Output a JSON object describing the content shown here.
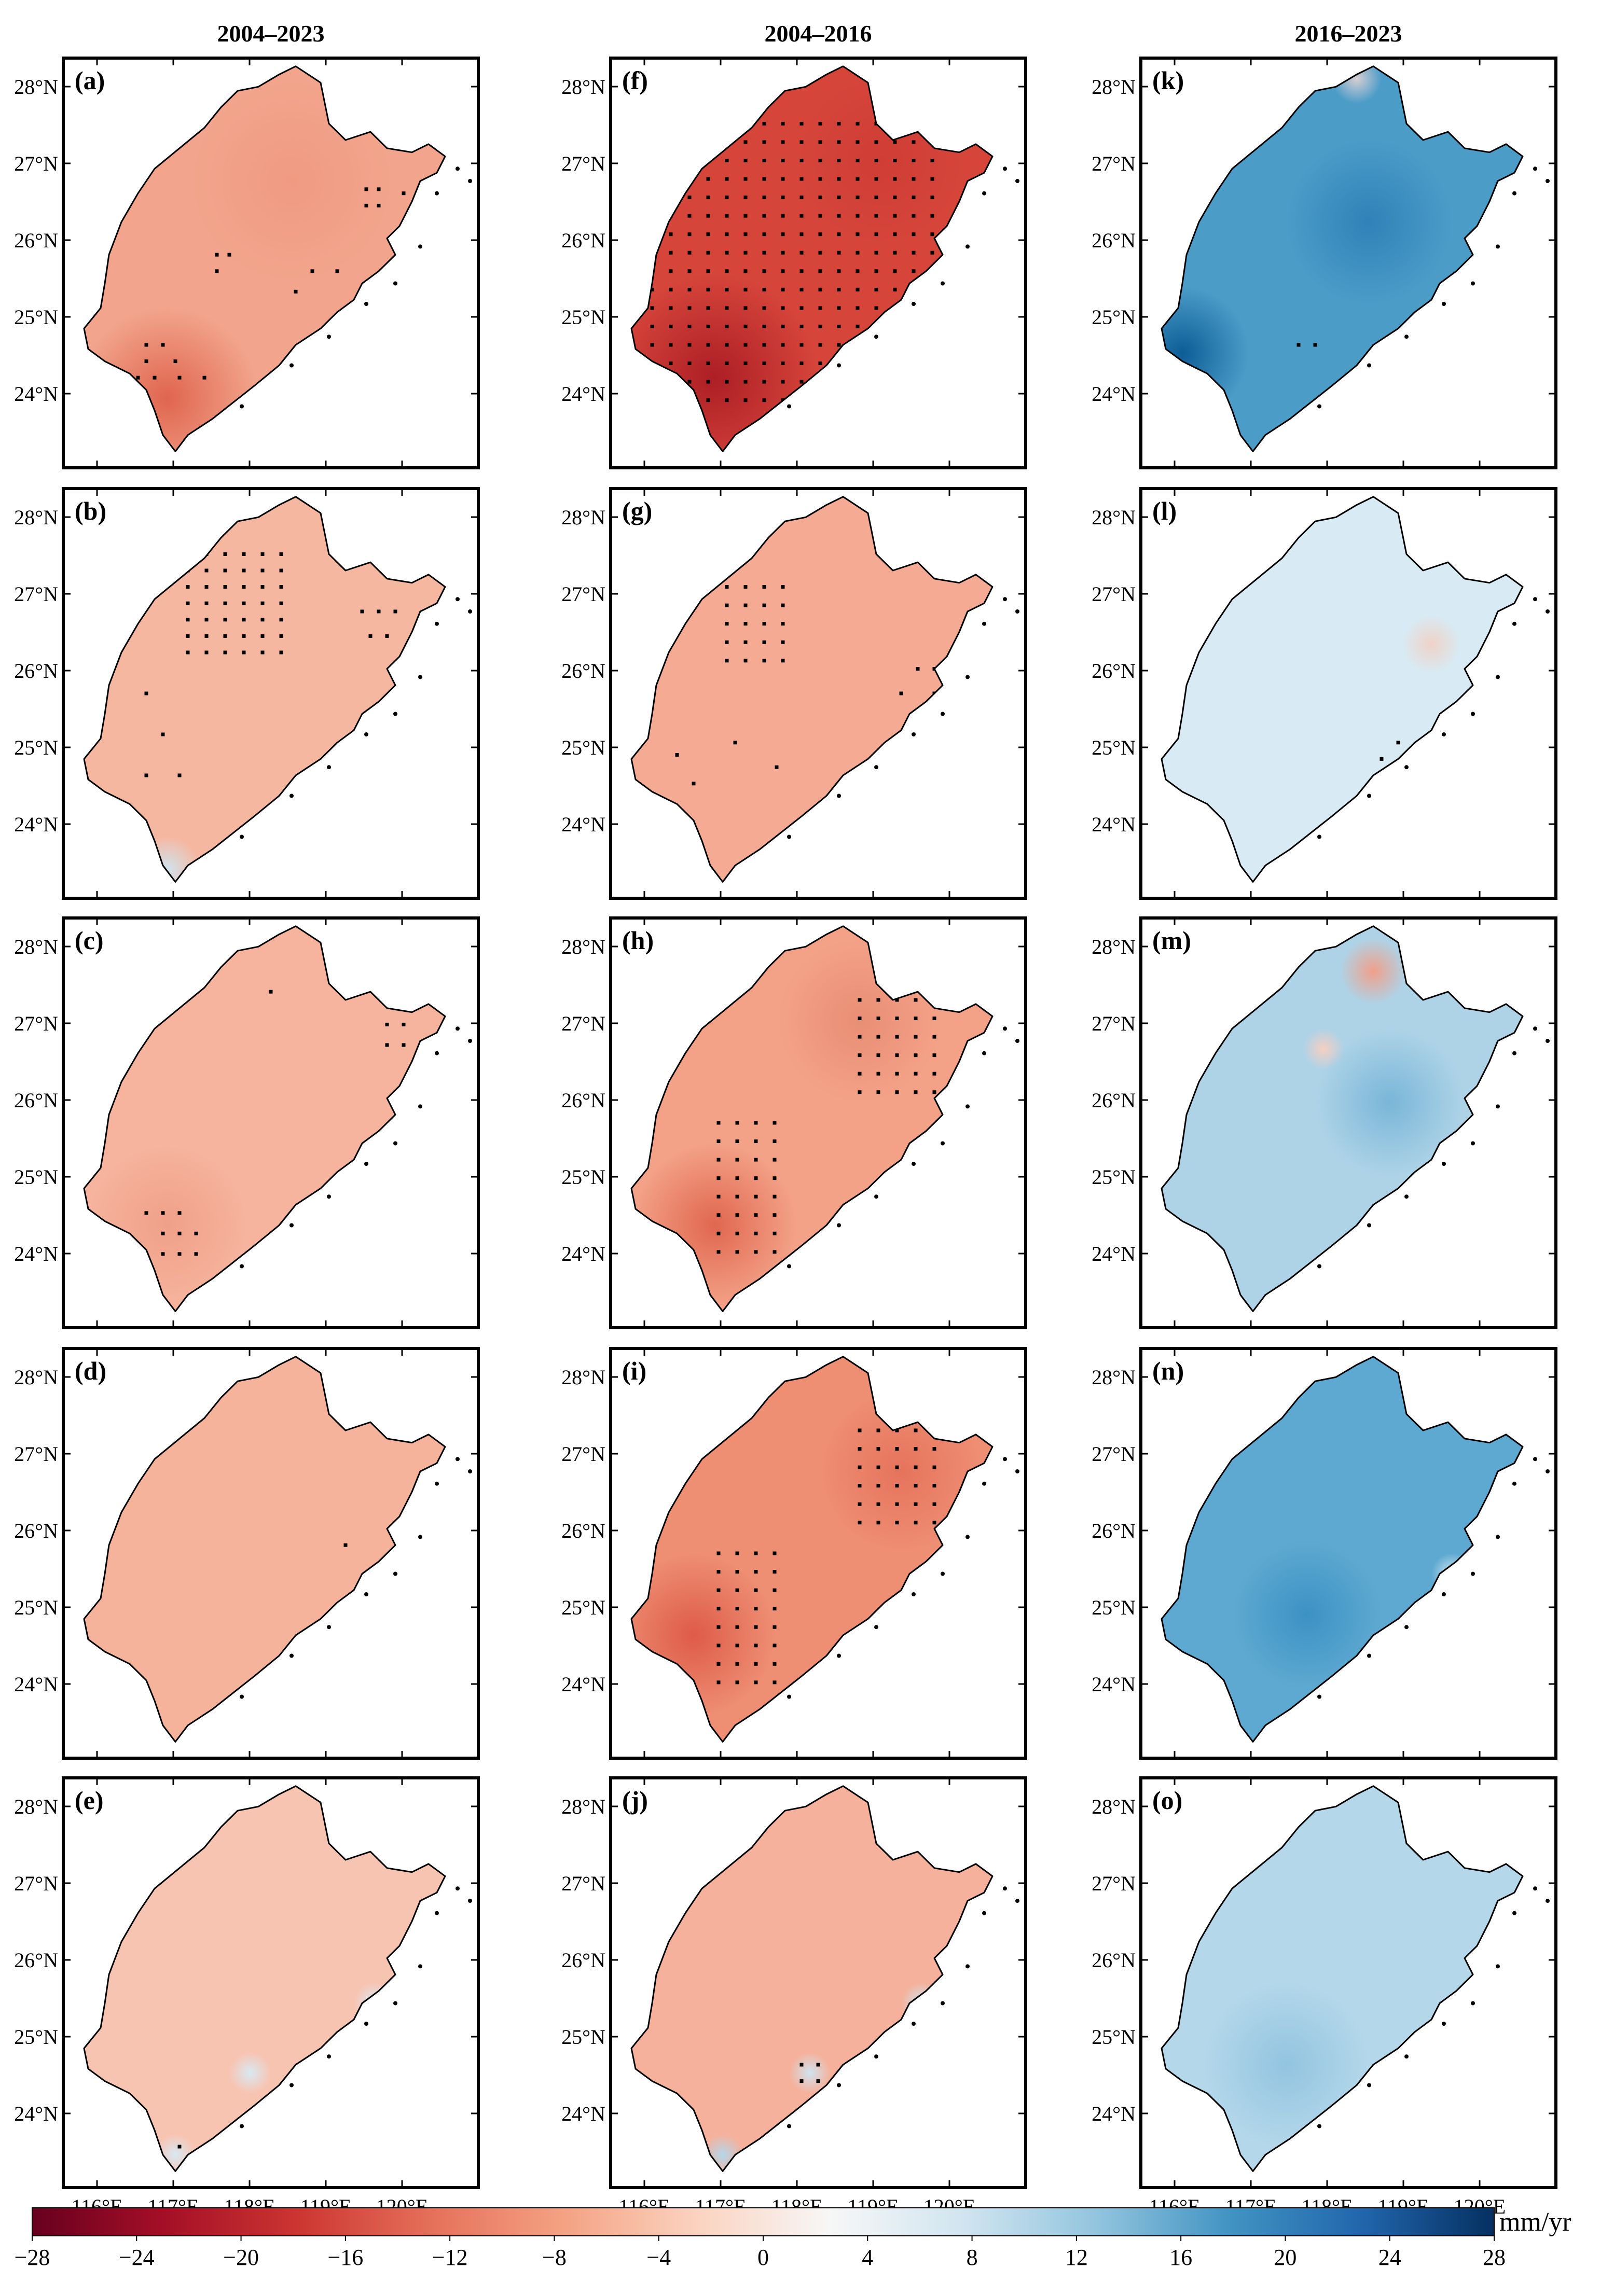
{
  "columns": [
    {
      "title": "2004–2023"
    },
    {
      "title": "2004–2016"
    },
    {
      "title": "2016–2023"
    }
  ],
  "lat_labels": [
    "28°N",
    "27°N",
    "26°N",
    "25°N",
    "24°N"
  ],
  "lon_labels": [
    "116°E",
    "117°E",
    "118°E",
    "119°E",
    "120°E"
  ],
  "panels": [
    {
      "label": "(a)",
      "col": 0,
      "row": 0,
      "base": "#f2a58c",
      "hot": [
        {
          "u": 0.25,
          "v": 0.83,
          "c": "#e0654f",
          "r": 0.22
        },
        {
          "u": 0.55,
          "v": 0.3,
          "c": "#f09a82",
          "r": 0.25
        }
      ],
      "dots": [
        [
          0.73,
          0.32
        ],
        [
          0.76,
          0.32
        ],
        [
          0.73,
          0.36
        ],
        [
          0.76,
          0.36
        ],
        [
          0.82,
          0.33
        ],
        [
          0.37,
          0.48
        ],
        [
          0.4,
          0.48
        ],
        [
          0.37,
          0.52
        ],
        [
          0.6,
          0.52
        ],
        [
          0.66,
          0.52
        ],
        [
          0.56,
          0.57
        ],
        [
          0.2,
          0.7
        ],
        [
          0.24,
          0.7
        ],
        [
          0.2,
          0.74
        ],
        [
          0.27,
          0.74
        ],
        [
          0.18,
          0.78
        ],
        [
          0.22,
          0.78
        ],
        [
          0.28,
          0.78
        ],
        [
          0.34,
          0.78
        ]
      ]
    },
    {
      "label": "(f)",
      "col": 1,
      "row": 0,
      "base": "#d5453a",
      "hot": [
        {
          "u": 0.25,
          "v": 0.78,
          "c": "#ad1e26",
          "r": 0.25
        },
        {
          "u": 0.65,
          "v": 0.25,
          "c": "#cf3d35",
          "r": 0.2
        }
      ],
      "dots": "grid-dense"
    },
    {
      "label": "(k)",
      "col": 2,
      "row": 0,
      "base": "#4c9cc8",
      "hot": [
        {
          "u": 0.1,
          "v": 0.72,
          "c": "#0c5d97",
          "r": 0.16
        },
        {
          "u": 0.55,
          "v": 0.4,
          "c": "#2f82b8",
          "r": 0.2
        },
        {
          "u": 0.52,
          "v": 0.05,
          "c": "#d7cfd3",
          "r": 0.06
        }
      ],
      "dots": [
        [
          0.38,
          0.7
        ],
        [
          0.42,
          0.7
        ]
      ]
    },
    {
      "label": "(b)",
      "col": 0,
      "row": 1,
      "base": "#f6b7a1",
      "hot": [
        {
          "u": 0.25,
          "v": 0.93,
          "c": "#cfe4ef",
          "r": 0.08
        }
      ],
      "dots": "grid-north"
    },
    {
      "label": "(g)",
      "col": 1,
      "row": 1,
      "base": "#f5ab93",
      "hot": [],
      "dots": "grid-north-sparse"
    },
    {
      "label": "(l)",
      "col": 2,
      "row": 1,
      "base": "#d8eaf3",
      "hot": [
        {
          "u": 0.7,
          "v": 0.38,
          "c": "#f0d2c8",
          "r": 0.07
        }
      ],
      "dots": [
        [
          0.62,
          0.62
        ],
        [
          0.58,
          0.66
        ]
      ]
    },
    {
      "label": "(c)",
      "col": 0,
      "row": 2,
      "base": "#f6b49e",
      "hot": [
        {
          "u": 0.25,
          "v": 0.75,
          "c": "#f0a088",
          "r": 0.2
        }
      ],
      "dots": [
        [
          0.5,
          0.18
        ],
        [
          0.78,
          0.26
        ],
        [
          0.82,
          0.26
        ],
        [
          0.78,
          0.31
        ],
        [
          0.82,
          0.31
        ],
        [
          0.2,
          0.72
        ],
        [
          0.24,
          0.72
        ],
        [
          0.28,
          0.72
        ],
        [
          0.24,
          0.77
        ],
        [
          0.28,
          0.77
        ],
        [
          0.32,
          0.77
        ],
        [
          0.24,
          0.82
        ],
        [
          0.28,
          0.82
        ],
        [
          0.32,
          0.82
        ]
      ]
    },
    {
      "label": "(h)",
      "col": 1,
      "row": 2,
      "base": "#f3a288",
      "hot": [
        {
          "u": 0.25,
          "v": 0.75,
          "c": "#e0674f",
          "r": 0.2
        },
        {
          "u": 0.6,
          "v": 0.25,
          "c": "#e98e75",
          "r": 0.2
        }
      ],
      "dots": "grid-mid"
    },
    {
      "label": "(m)",
      "col": 2,
      "row": 2,
      "base": "#aed3e7",
      "hot": [
        {
          "u": 0.56,
          "v": 0.13,
          "c": "#f0a08a",
          "r": 0.08
        },
        {
          "u": 0.44,
          "v": 0.32,
          "c": "#f5cfc2",
          "r": 0.05
        },
        {
          "u": 0.6,
          "v": 0.45,
          "c": "#79b6d8",
          "r": 0.18
        }
      ],
      "dots": []
    },
    {
      "label": "(d)",
      "col": 0,
      "row": 3,
      "base": "#f6b39c",
      "hot": [],
      "dots": [
        [
          0.68,
          0.48
        ]
      ]
    },
    {
      "label": "(i)",
      "col": 1,
      "row": 3,
      "base": "#ee8f74",
      "hot": [
        {
          "u": 0.2,
          "v": 0.7,
          "c": "#de5b48",
          "r": 0.2
        },
        {
          "u": 0.7,
          "v": 0.3,
          "c": "#e6735c",
          "r": 0.2
        }
      ],
      "dots": "grid-mid"
    },
    {
      "label": "(n)",
      "col": 2,
      "row": 3,
      "base": "#5ea9d1",
      "hot": [
        {
          "u": 0.4,
          "v": 0.65,
          "c": "#3c92c4",
          "r": 0.18
        },
        {
          "u": 0.75,
          "v": 0.55,
          "c": "#cfe5f1",
          "r": 0.05
        }
      ],
      "dots": []
    },
    {
      "label": "(e)",
      "col": 0,
      "row": 4,
      "base": "#f8c4b2",
      "hot": [
        {
          "u": 0.75,
          "v": 0.55,
          "c": "#d8e9f3",
          "r": 0.05
        },
        {
          "u": 0.45,
          "v": 0.72,
          "c": "#d8e9f3",
          "r": 0.05
        },
        {
          "u": 0.27,
          "v": 0.92,
          "c": "#d8e9f3",
          "r": 0.05
        }
      ],
      "dots": [
        [
          0.28,
          0.9
        ]
      ]
    },
    {
      "label": "(j)",
      "col": 1,
      "row": 4,
      "base": "#f5b19b",
      "hot": [
        {
          "u": 0.75,
          "v": 0.55,
          "c": "#cfe4ef",
          "r": 0.05
        },
        {
          "u": 0.48,
          "v": 0.72,
          "c": "#cfe4ef",
          "r": 0.05
        },
        {
          "u": 0.27,
          "v": 0.92,
          "c": "#b4d7ea",
          "r": 0.05
        }
      ],
      "dots": [
        [
          0.46,
          0.7
        ],
        [
          0.5,
          0.7
        ],
        [
          0.46,
          0.74
        ],
        [
          0.5,
          0.74
        ]
      ]
    },
    {
      "label": "(o)",
      "col": 2,
      "row": 4,
      "base": "#b4d7ea",
      "hot": [
        {
          "u": 0.35,
          "v": 0.7,
          "c": "#92c4e0",
          "r": 0.2
        }
      ],
      "dots": []
    }
  ],
  "colorbar": {
    "ticks": [
      "−28",
      "−24",
      "−20",
      "−16",
      "−12",
      "−8",
      "−4",
      "0",
      "4",
      "8",
      "12",
      "16",
      "20",
      "24",
      "28"
    ],
    "unit": "mm/yr",
    "stops": [
      "#67001f",
      "#a50f26",
      "#cc3531",
      "#e5705a",
      "#f4a283",
      "#fbd3c0",
      "#f7f7f7",
      "#d1e5f0",
      "#93c5de",
      "#4294c3",
      "#2166ac",
      "#053061"
    ]
  }
}
